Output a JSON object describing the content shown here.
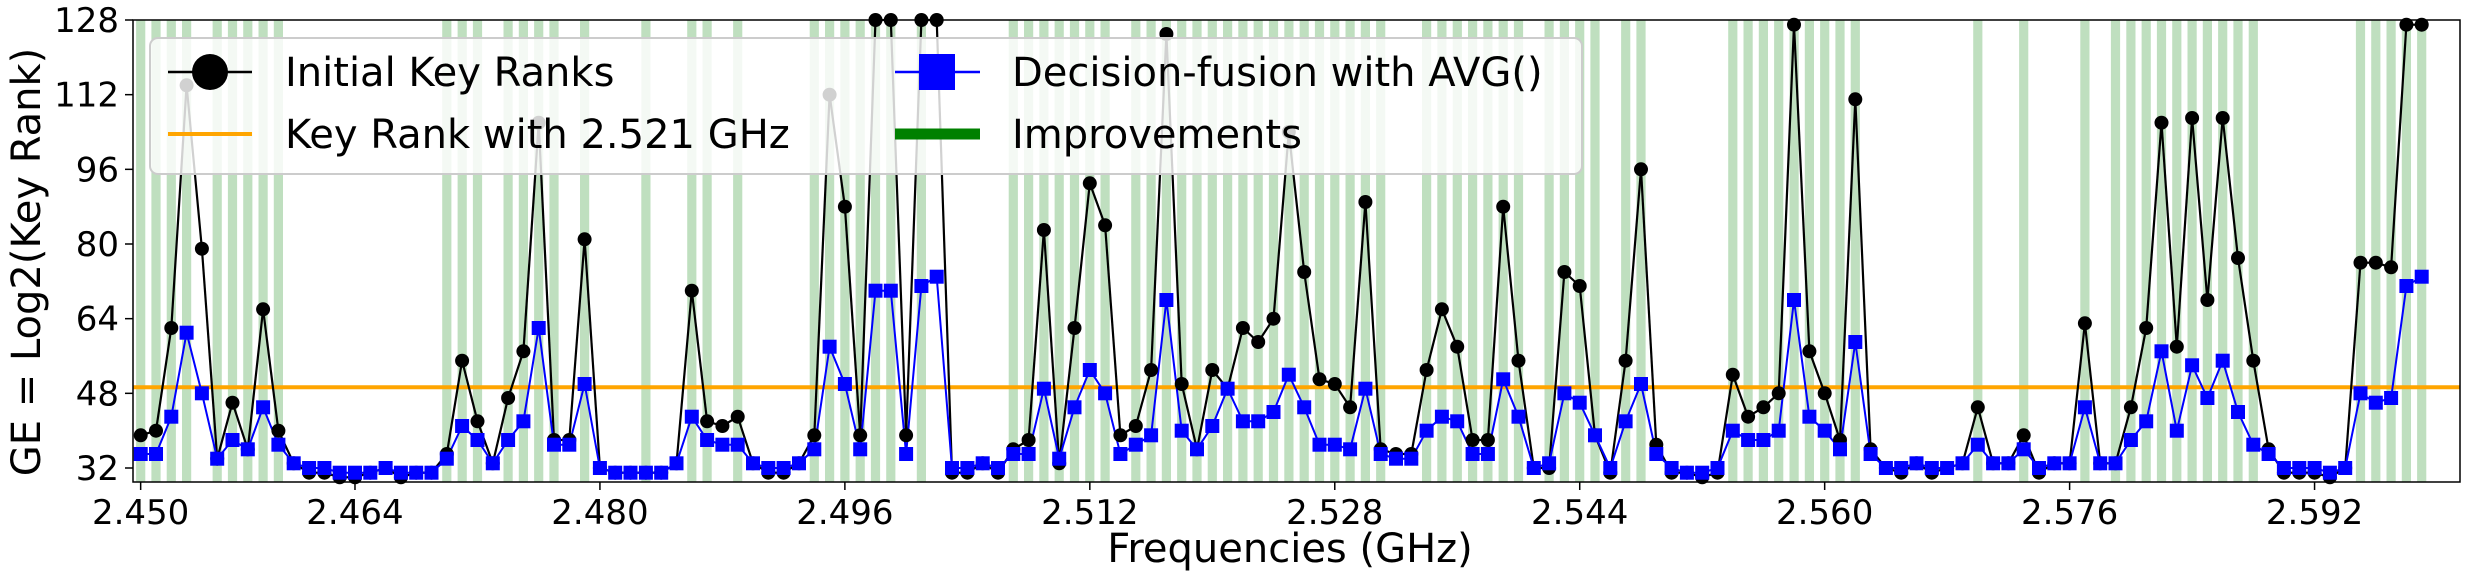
{
  "chart_data": {
    "type": "line",
    "xlabel": "Frequencies (GHz)",
    "ylabel": "GE = Log2(Key Rank)",
    "xlim": [
      2.4495,
      2.6015
    ],
    "ylim": [
      29,
      128
    ],
    "x_ticks": [
      2.45,
      2.464,
      2.48,
      2.496,
      2.512,
      2.528,
      2.544,
      2.56,
      2.576,
      2.592
    ],
    "x_tick_labels": [
      "2.450",
      "2.464",
      "2.480",
      "2.496",
      "2.512",
      "2.528",
      "2.544",
      "2.560",
      "2.576",
      "2.592"
    ],
    "y_ticks": [
      32,
      48,
      64,
      80,
      96,
      112,
      128
    ],
    "y_tick_labels": [
      "32",
      "48",
      "64",
      "80",
      "96",
      "112",
      "128"
    ],
    "reference_line": {
      "name": "Key Rank with 2.521 GHz",
      "value": 49.3,
      "color": "#ffa500"
    },
    "x_start": 2.45,
    "x_step": 0.001,
    "series": [
      {
        "name": "Initial Key Ranks",
        "color": "#000000",
        "marker": "circle",
        "values": [
          39,
          40,
          62,
          114,
          79,
          34,
          46,
          36,
          66,
          40,
          33,
          31,
          31,
          30,
          30,
          31,
          32,
          30,
          31,
          31,
          35,
          55,
          42,
          33,
          47,
          57,
          106,
          38,
          38,
          81,
          32,
          31,
          31,
          31,
          31,
          33,
          70,
          42,
          41,
          43,
          33,
          31,
          31,
          33,
          39,
          112,
          88,
          39,
          128,
          128,
          39,
          128,
          128,
          31,
          31,
          33,
          31,
          36,
          38,
          83,
          33,
          62,
          93,
          84,
          39,
          41,
          53,
          125,
          50,
          36,
          53,
          49,
          62,
          59,
          64,
          104,
          74,
          51,
          50,
          45,
          89,
          36,
          35,
          35,
          53,
          66,
          58,
          38,
          38,
          88,
          55,
          32,
          32,
          74,
          71,
          39,
          31,
          55,
          96,
          37,
          31,
          31,
          30,
          31,
          52,
          43,
          45,
          48,
          127,
          57,
          48,
          38,
          111,
          36,
          32,
          31,
          33,
          31,
          32,
          33,
          45,
          33,
          33,
          39,
          31,
          33,
          33,
          63,
          33,
          33,
          45,
          62,
          106,
          58,
          107,
          68,
          107,
          77,
          55,
          36,
          31,
          31,
          31,
          30,
          32,
          76,
          76,
          75,
          127,
          127
        ],
        "improved": [
          true,
          true,
          true,
          true,
          false,
          true,
          true,
          true,
          true,
          true,
          false,
          false,
          false,
          false,
          false,
          false,
          false,
          false,
          false,
          false,
          true,
          true,
          true,
          false,
          true,
          true,
          true,
          true,
          false,
          true,
          false,
          false,
          false,
          true,
          false,
          false,
          true,
          true,
          false,
          true,
          false,
          false,
          false,
          false,
          true,
          true,
          true,
          true,
          true,
          true,
          false,
          true,
          false,
          false,
          false,
          false,
          false,
          true,
          true,
          true,
          true,
          true,
          true,
          true,
          false,
          true,
          true,
          true,
          true,
          true,
          true,
          true,
          true,
          true,
          true,
          true,
          true,
          true,
          true,
          true,
          true,
          true,
          false,
          false,
          true,
          true,
          true,
          true,
          true,
          true,
          true,
          false,
          true,
          true,
          true,
          true,
          false,
          true,
          true,
          false,
          false,
          false,
          false,
          false,
          true,
          true,
          true,
          true,
          true,
          true,
          true,
          true,
          true,
          false,
          false,
          false,
          false,
          false,
          false,
          false,
          true,
          false,
          false,
          true,
          false,
          false,
          false,
          true,
          false,
          true,
          true,
          true,
          true,
          true,
          true,
          true,
          true,
          true,
          true,
          false,
          false,
          false,
          false,
          false,
          false,
          true,
          true,
          true,
          true,
          true
        ]
      },
      {
        "name": "Decision-fusion with AVG()",
        "color": "#0000ff",
        "marker": "square",
        "values": [
          35,
          35,
          43,
          61,
          48,
          34,
          38,
          36,
          45,
          37,
          33,
          32,
          32,
          31,
          31,
          31,
          32,
          31,
          31,
          31,
          34,
          41,
          38,
          33,
          38,
          42,
          62,
          37,
          37,
          50,
          32,
          31,
          31,
          31,
          31,
          33,
          43,
          38,
          37,
          37,
          33,
          32,
          32,
          33,
          36,
          58,
          50,
          36,
          70,
          70,
          35,
          71,
          73,
          32,
          32,
          33,
          32,
          35,
          35,
          49,
          34,
          45,
          53,
          48,
          35,
          37,
          39,
          68,
          40,
          36,
          41,
          49,
          42,
          42,
          44,
          52,
          45,
          37,
          37,
          36,
          49,
          35,
          34,
          34,
          40,
          43,
          42,
          35,
          35,
          51,
          43,
          32,
          33,
          48,
          46,
          39,
          32,
          42,
          50,
          35,
          32,
          31,
          31,
          32,
          40,
          38,
          38,
          40,
          68,
          43,
          40,
          36,
          59,
          35,
          32,
          32,
          33,
          32,
          32,
          33,
          37,
          33,
          33,
          36,
          32,
          33,
          33,
          45,
          33,
          33,
          38,
          42,
          57,
          40,
          54,
          47,
          55,
          44,
          37,
          35,
          32,
          32,
          32,
          31,
          32,
          48,
          46,
          47,
          71,
          73
        ]
      }
    ],
    "legend": {
      "placement": "top-left",
      "entries": [
        "Initial Key Ranks",
        "Decision-fusion with AVG()",
        "Key Rank with 2.521 GHz",
        "Improvements"
      ],
      "improvements_color": "#008000"
    }
  }
}
